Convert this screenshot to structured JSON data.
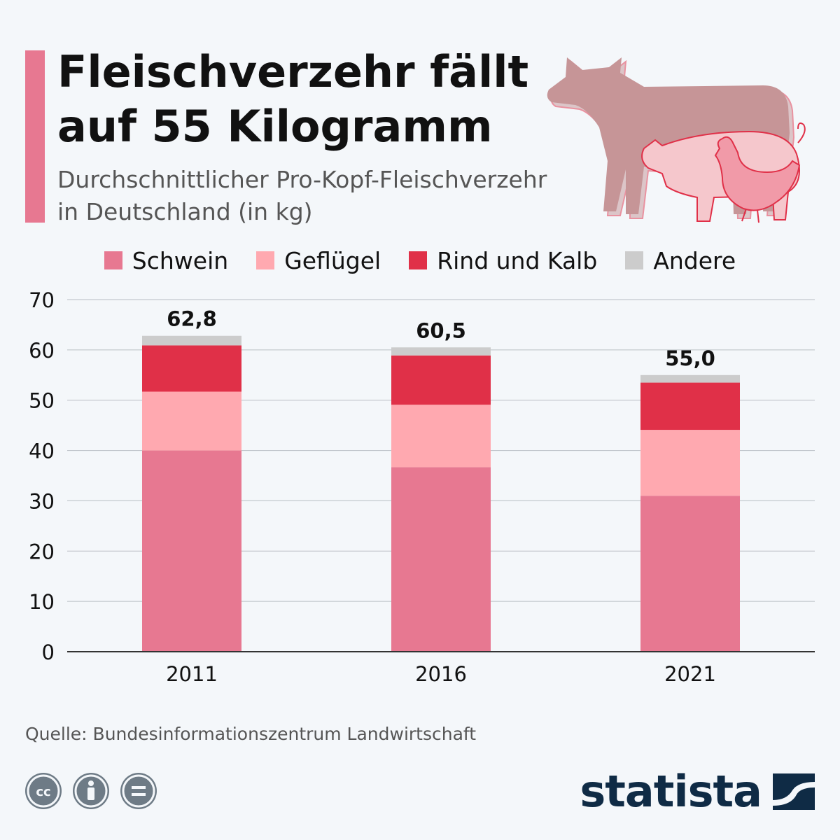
{
  "header": {
    "title_line1": "Fleischverzehr fällt",
    "title_line2": "auf 55 Kilogramm",
    "subtitle_line1": "Durchschnittlicher Pro-Kopf-Fleischverzehr",
    "subtitle_line2": "in Deutschland (in kg)"
  },
  "legend": [
    {
      "label": "Schwein",
      "color": "#e77891"
    },
    {
      "label": "Geflügel",
      "color": "#ffa9b0"
    },
    {
      "label": "Rind und Kalb",
      "color": "#e03048"
    },
    {
      "label": "Andere",
      "color": "#cccccc"
    }
  ],
  "chart_data": {
    "type": "bar",
    "stacked": true,
    "categories": [
      "2011",
      "2016",
      "2021"
    ],
    "series": [
      {
        "name": "Schwein",
        "color": "#e77891",
        "values": [
          40.0,
          36.7,
          31.0
        ]
      },
      {
        "name": "Geflügel",
        "color": "#ffa9b0",
        "values": [
          11.7,
          12.4,
          13.1
        ]
      },
      {
        "name": "Rind und Kalb",
        "color": "#e03048",
        "values": [
          9.2,
          9.8,
          9.4
        ]
      },
      {
        "name": "Andere",
        "color": "#cccccc",
        "values": [
          1.9,
          1.6,
          1.5
        ]
      }
    ],
    "totals": [
      "62,8",
      "60,5",
      "55,0"
    ],
    "ylim": [
      0,
      70
    ],
    "yticks": [
      "0",
      "10",
      "20",
      "30",
      "40",
      "50",
      "60",
      "70"
    ],
    "grid": true,
    "legend_position": "top"
  },
  "footer": {
    "source": "Quelle: Bundesinformationszentrum Landwirtschaft",
    "brand": "statista",
    "brand_color": "#0f2b45"
  }
}
